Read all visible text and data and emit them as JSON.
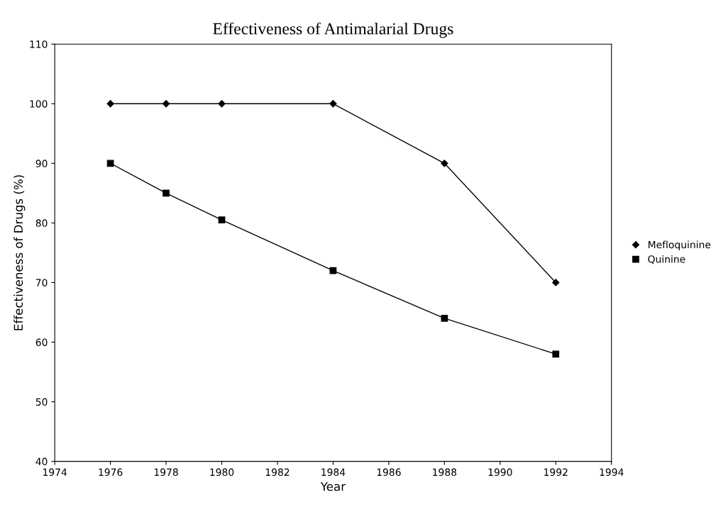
{
  "chart_data": {
    "type": "line",
    "title": "Effectiveness of Antimalarial Drugs",
    "xlabel": "Year",
    "ylabel": "Effectiveness of Drugs (%)",
    "x": [
      1976,
      1978,
      1980,
      1984,
      1988,
      1992
    ],
    "series": [
      {
        "name": "Mefloquinine",
        "color": "#000000",
        "marker": "diamond",
        "values": [
          100,
          100,
          100,
          100,
          90,
          70
        ]
      },
      {
        "name": "Quinine",
        "color": "#000000",
        "marker": "square",
        "values": [
          90,
          85,
          80.5,
          72,
          64,
          58
        ]
      }
    ],
    "xlim": [
      1974,
      1994
    ],
    "xticks": [
      1974,
      1976,
      1978,
      1980,
      1982,
      1984,
      1986,
      1988,
      1990,
      1992,
      1994
    ],
    "ylim": [
      40,
      110
    ],
    "yticks": [
      40,
      50,
      60,
      70,
      80,
      90,
      100,
      110
    ],
    "grid": false,
    "legend": "right",
    "line_style": "solid"
  }
}
